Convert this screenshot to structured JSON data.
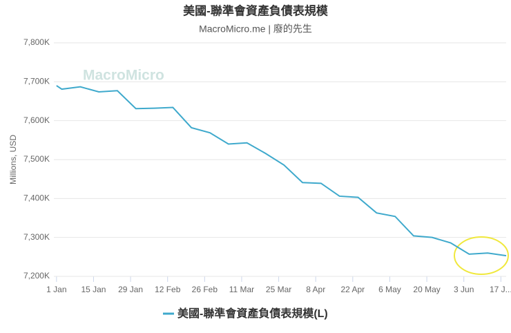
{
  "chart_data": {
    "type": "line",
    "title": "美國-聯準會資產負債表規模",
    "subtitle": "MacroMicro.me | 廢的先生",
    "watermark": "MacroMicro",
    "y_label": "Millions, USD",
    "xlim": [
      -1,
      170
    ],
    "xticks": [
      {
        "value": 0,
        "label": "1 Jan"
      },
      {
        "value": 14,
        "label": "15 Jan"
      },
      {
        "value": 28,
        "label": "29 Jan"
      },
      {
        "value": 42,
        "label": "12 Feb"
      },
      {
        "value": 56,
        "label": "26 Feb"
      },
      {
        "value": 70,
        "label": "11 Mar"
      },
      {
        "value": 84,
        "label": "25 Mar"
      },
      {
        "value": 98,
        "label": "8 Apr"
      },
      {
        "value": 112,
        "label": "22 Apr"
      },
      {
        "value": 126,
        "label": "6 May"
      },
      {
        "value": 140,
        "label": "20 May"
      },
      {
        "value": 154,
        "label": "3 Jun"
      },
      {
        "value": 168,
        "label": "17 J..."
      }
    ],
    "ylim": [
      7200,
      7800
    ],
    "yticks": [
      {
        "value": 7200,
        "label": "7,200K"
      },
      {
        "value": 7300,
        "label": "7,300K"
      },
      {
        "value": 7400,
        "label": "7,400K"
      },
      {
        "value": 7500,
        "label": "7,500K"
      },
      {
        "value": 7600,
        "label": "7,600K"
      },
      {
        "value": 7700,
        "label": "7,700K"
      },
      {
        "value": 7800,
        "label": "7,800K"
      }
    ],
    "grid": true,
    "series": [
      {
        "name": "美國-聯準會資產負債表規模(L)",
        "color": "#3ea9cc",
        "x": [
          0,
          2,
          9,
          16,
          23,
          30,
          37,
          44,
          51,
          58,
          65,
          72,
          79,
          86,
          93,
          100,
          107,
          114,
          121,
          128,
          135,
          142,
          149,
          156,
          163,
          170
        ],
        "values": [
          7690,
          7681,
          7687,
          7674,
          7677,
          7631,
          7632,
          7634,
          7582,
          7569,
          7540,
          7543,
          7516,
          7486,
          7441,
          7439,
          7406,
          7403,
          7363,
          7354,
          7304,
          7300,
          7286,
          7257,
          7260,
          7253
        ]
      }
    ]
  }
}
